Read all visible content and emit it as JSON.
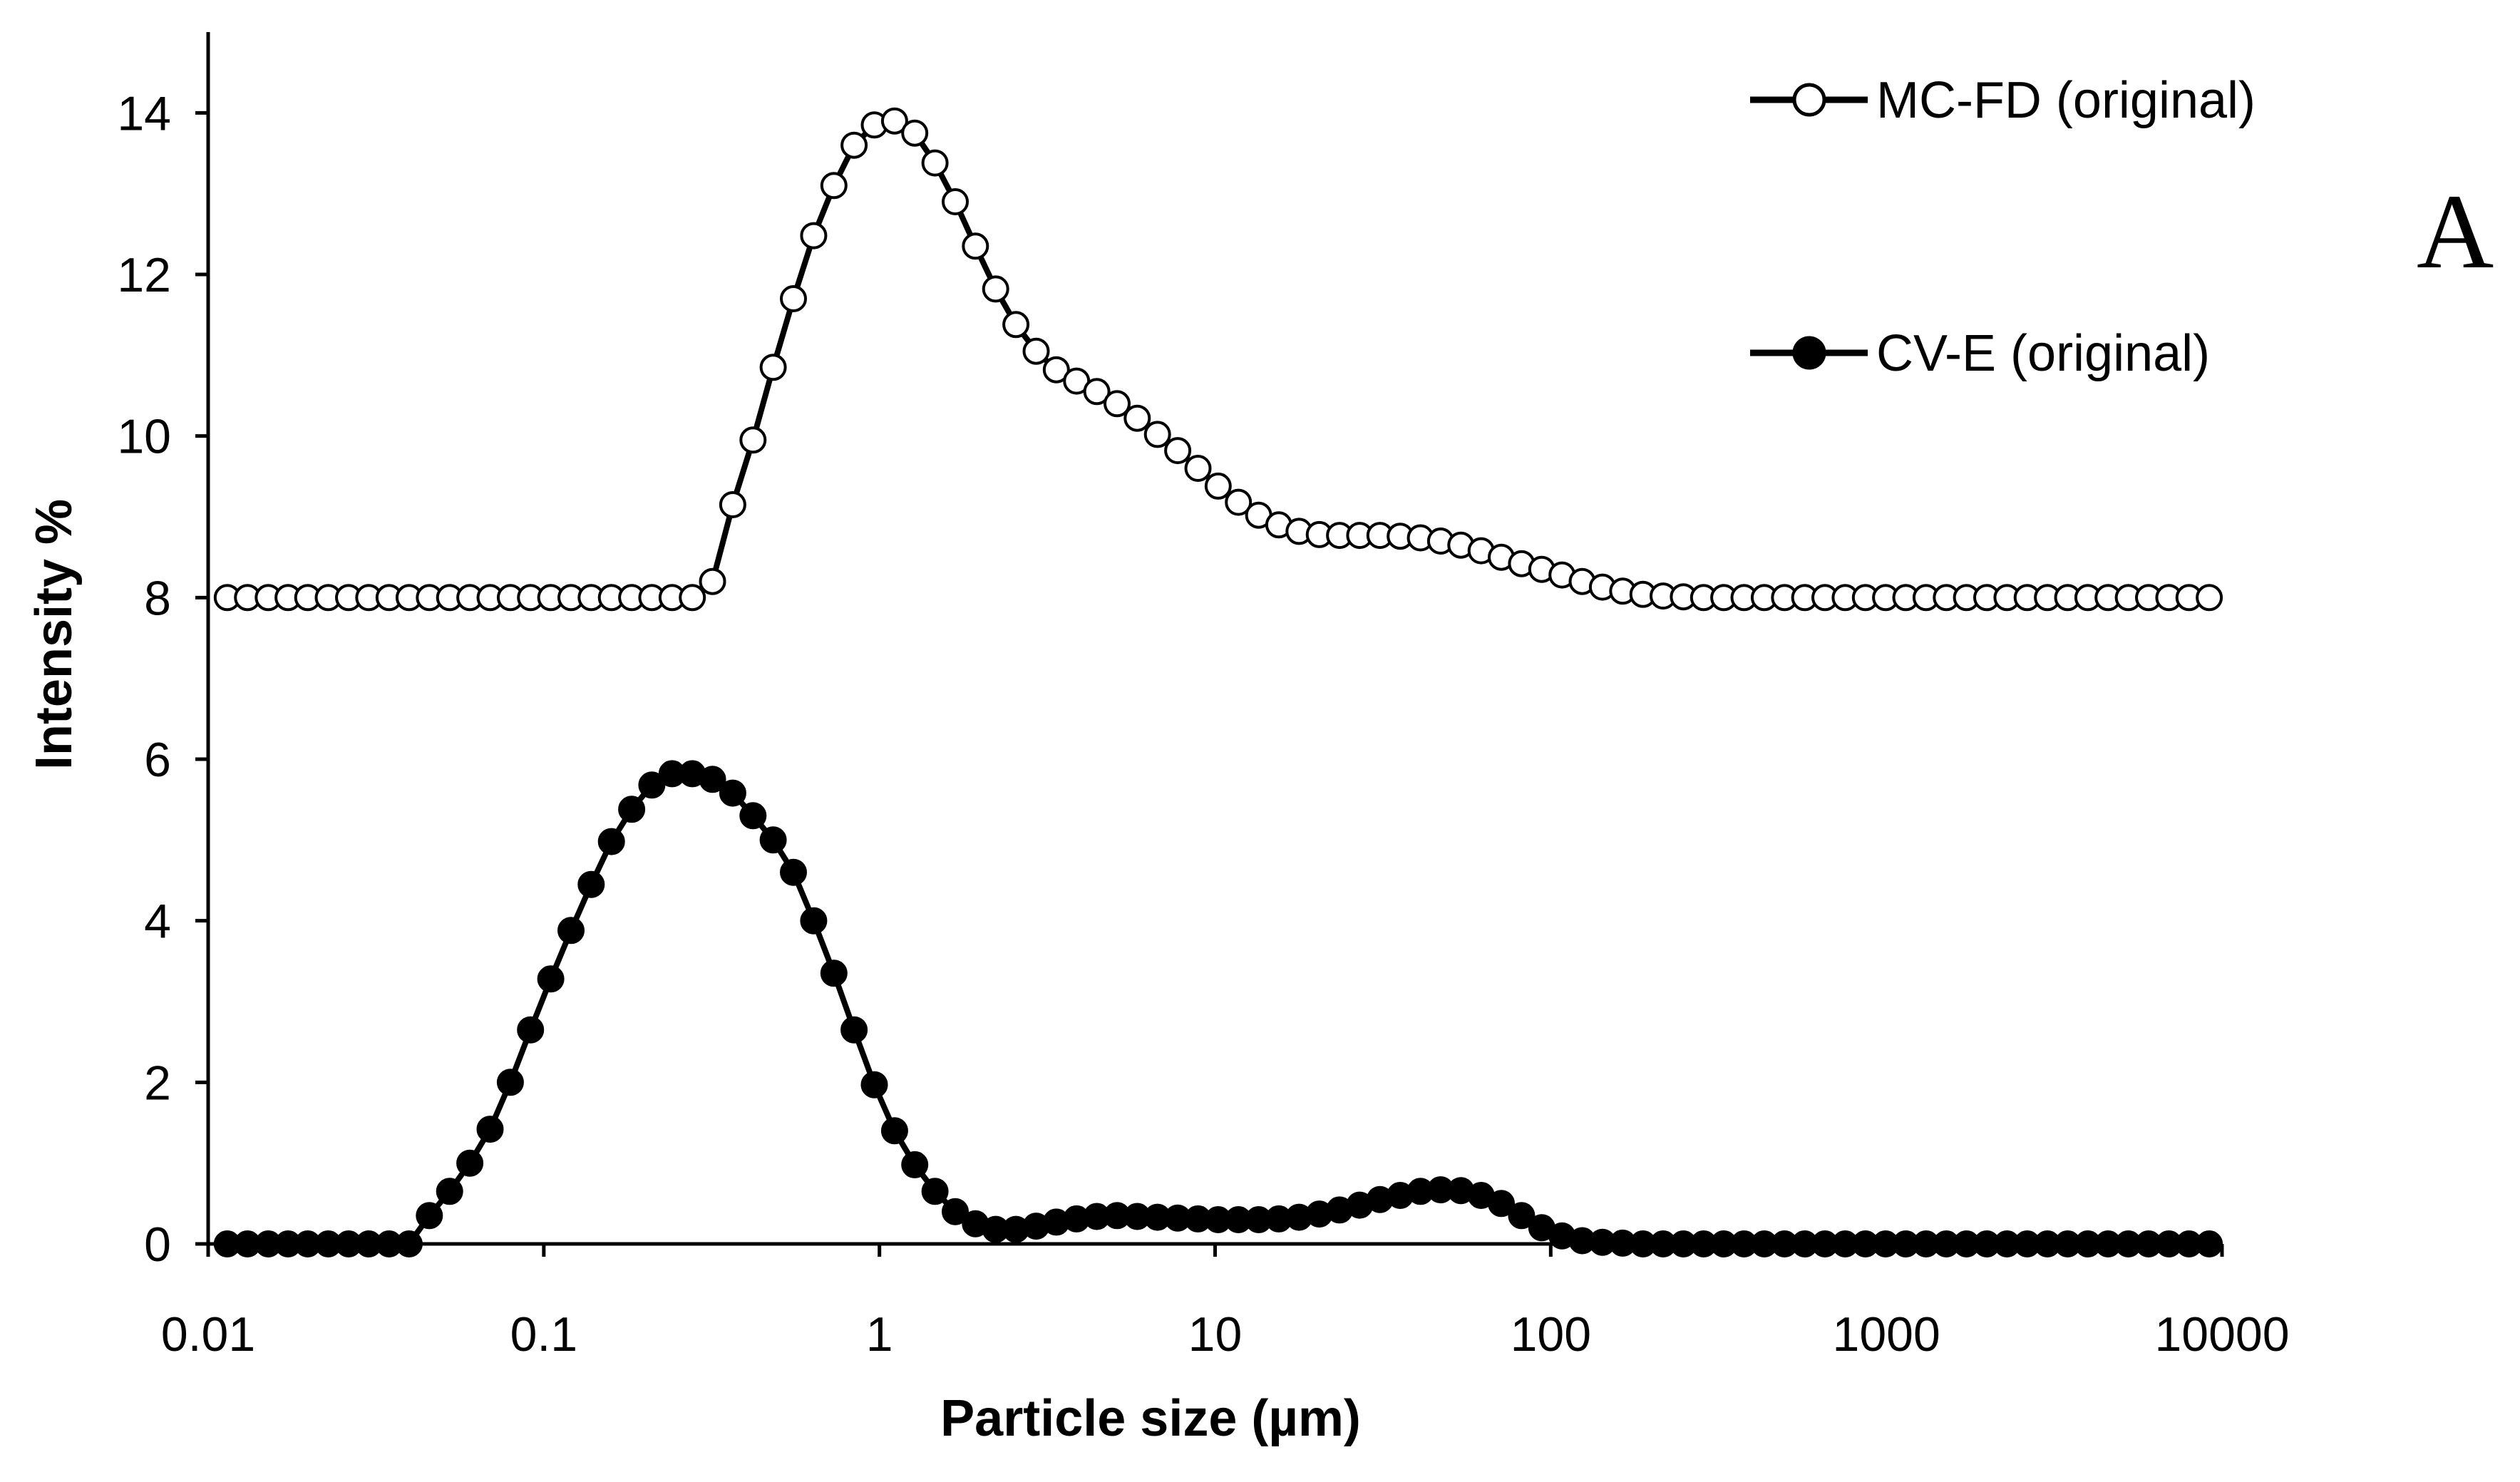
{
  "chart_data": {
    "type": "line",
    "title": "",
    "panel_label": "A",
    "xlabel": "Particle size (µm)",
    "ylabel": "Intensity %",
    "x_scale": "log",
    "xlim": [
      0.01,
      10000
    ],
    "ylim": [
      0,
      15
    ],
    "x_ticks": [
      0.01,
      0.1,
      1,
      10,
      100,
      1000,
      10000
    ],
    "x_tick_labels": [
      "0.01",
      "0.1",
      "1",
      "10",
      "100",
      "1000",
      "10000"
    ],
    "y_ticks": [
      0,
      2,
      4,
      6,
      8,
      10,
      12,
      14
    ],
    "y_tick_labels": [
      "0",
      "2",
      "4",
      "6",
      "8",
      "10",
      "12",
      "14"
    ],
    "grid": false,
    "legend_position": "top-right",
    "series": [
      {
        "name": "MC-FD (original)",
        "marker": "open-circle",
        "color": "#000000",
        "fill": "#ffffff",
        "x": [
          0.0114,
          0.0131,
          0.0151,
          0.0173,
          0.0198,
          0.0228,
          0.0262,
          0.0301,
          0.0346,
          0.0397,
          0.0456,
          0.0524,
          0.0602,
          0.0692,
          0.0795,
          0.0913,
          0.1049,
          0.1205,
          0.1384,
          0.159,
          0.1827,
          0.2099,
          0.2411,
          0.277,
          0.3182,
          0.3656,
          0.42,
          0.4825,
          0.5543,
          0.6368,
          0.7316,
          0.8404,
          0.9655,
          1.1092,
          1.2743,
          1.4639,
          1.6818,
          1.9322,
          2.2198,
          2.5502,
          2.9298,
          3.3658,
          3.8668,
          4.4424,
          5.1036,
          5.8632,
          6.7359,
          7.7385,
          8.8904,
          10.2136,
          11.7339,
          13.4804,
          15.487,
          17.7922,
          20.4403,
          23.4828,
          26.9781,
          30.9936,
          35.6067,
          40.9066,
          46.9953,
          53.9902,
          62.0264,
          71.2588,
          81.8654,
          94.0508,
          108.05,
          124.13,
          142.61,
          163.83,
          188.22,
          216.24,
          248.42,
          285.4,
          327.88,
          376.68,
          432.75,
          497.16,
          571.16,
          656.17,
          753.84,
          866.05,
          994.95,
          1143.04,
          1313.18,
          1508.64,
          1733.19,
          1991.17,
          2287.54,
          2628.03,
          3019.19,
          3468.58,
          3984.86,
          4577.97,
          5259.38,
          6042.21,
          6941.56,
          7974.79,
          9161.82
        ],
        "y": [
          8.0,
          8.0,
          8.0,
          8.0,
          8.0,
          8.0,
          8.0,
          8.0,
          8.0,
          8.0,
          8.0,
          8.0,
          8.0,
          8.0,
          8.0,
          8.0,
          8.0,
          8.0,
          8.0,
          8.0,
          8.0,
          8.0,
          8.0,
          8.0,
          8.2,
          9.15,
          9.95,
          10.85,
          11.7,
          12.48,
          13.1,
          13.6,
          13.85,
          13.9,
          13.75,
          13.38,
          12.9,
          12.35,
          11.82,
          11.38,
          11.05,
          10.82,
          10.68,
          10.55,
          10.4,
          10.22,
          10.02,
          9.82,
          9.6,
          9.38,
          9.18,
          9.02,
          8.9,
          8.82,
          8.78,
          8.77,
          8.77,
          8.77,
          8.76,
          8.74,
          8.7,
          8.65,
          8.58,
          8.5,
          8.42,
          8.35,
          8.28,
          8.2,
          8.13,
          8.08,
          8.04,
          8.02,
          8.01,
          8.0,
          8.0,
          8.0,
          8.0,
          8.0,
          8.0,
          8.0,
          8.0,
          8.0,
          8.0,
          8.0,
          8.0,
          8.0,
          8.0,
          8.0,
          8.0,
          8.0,
          8.0,
          8.0,
          8.0,
          8.0,
          8.0,
          8.0,
          8.0,
          8.0,
          8.0
        ]
      },
      {
        "name": "CV-E (original)",
        "marker": "filled-circle",
        "color": "#000000",
        "fill": "#000000",
        "x": [
          0.0114,
          0.0131,
          0.0151,
          0.0173,
          0.0198,
          0.0228,
          0.0262,
          0.0301,
          0.0346,
          0.0397,
          0.0456,
          0.0524,
          0.0602,
          0.0692,
          0.0795,
          0.0913,
          0.1049,
          0.1205,
          0.1384,
          0.159,
          0.1827,
          0.2099,
          0.2411,
          0.277,
          0.3182,
          0.3656,
          0.42,
          0.4825,
          0.5543,
          0.6368,
          0.7316,
          0.8404,
          0.9655,
          1.1092,
          1.2743,
          1.4639,
          1.6818,
          1.9322,
          2.2198,
          2.5502,
          2.9298,
          3.3658,
          3.8668,
          4.4424,
          5.1036,
          5.8632,
          6.7359,
          7.7385,
          8.8904,
          10.2136,
          11.7339,
          13.4804,
          15.487,
          17.7922,
          20.4403,
          23.4828,
          26.9781,
          30.9936,
          35.6067,
          40.9066,
          46.9953,
          53.9902,
          62.0264,
          71.2588,
          81.8654,
          94.0508,
          108.05,
          124.13,
          142.61,
          163.83,
          188.22,
          216.24,
          248.42,
          285.4,
          327.88,
          376.68,
          432.75,
          497.16,
          571.16,
          656.17,
          753.84,
          866.05,
          994.95,
          1143.04,
          1313.18,
          1508.64,
          1733.19,
          1991.17,
          2287.54,
          2628.03,
          3019.19,
          3468.58,
          3984.86,
          4577.97,
          5259.38,
          6042.21,
          6941.56,
          7974.79,
          9161.82
        ],
        "y": [
          0.0,
          0.0,
          0.0,
          0.0,
          0.0,
          0.0,
          0.0,
          0.0,
          0.0,
          0.0,
          0.35,
          0.65,
          1.0,
          1.42,
          2.0,
          2.65,
          3.28,
          3.88,
          4.45,
          4.98,
          5.38,
          5.68,
          5.82,
          5.82,
          5.75,
          5.58,
          5.3,
          5.0,
          4.6,
          4.0,
          3.35,
          2.65,
          1.97,
          1.4,
          0.98,
          0.65,
          0.4,
          0.25,
          0.18,
          0.18,
          0.22,
          0.27,
          0.31,
          0.34,
          0.35,
          0.34,
          0.33,
          0.32,
          0.31,
          0.3,
          0.3,
          0.3,
          0.31,
          0.33,
          0.37,
          0.42,
          0.48,
          0.55,
          0.6,
          0.65,
          0.67,
          0.66,
          0.6,
          0.5,
          0.35,
          0.2,
          0.1,
          0.04,
          0.02,
          0.01,
          0.0,
          0.0,
          0.0,
          0.0,
          0.0,
          0.0,
          0.0,
          0.0,
          0.0,
          0.0,
          0.0,
          0.0,
          0.0,
          0.0,
          0.0,
          0.0,
          0.0,
          0.0,
          0.0,
          0.0,
          0.0,
          0.0,
          0.0,
          0.0,
          0.0,
          0.0,
          0.0,
          0.0,
          0.0
        ]
      }
    ]
  }
}
